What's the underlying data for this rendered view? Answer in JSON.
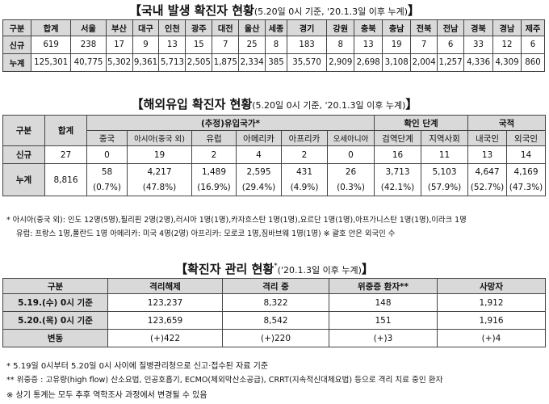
{
  "domestic": {
    "title_main": "국내 발생 확진자 현황",
    "title_sub": "(5.20일 0시 기준, '20.1.3일 이후 누계)",
    "headers": [
      "구분",
      "합계",
      "서울",
      "부산",
      "대구",
      "인천",
      "광주",
      "대전",
      "울산",
      "세종",
      "경기",
      "강원",
      "충북",
      "충남",
      "전북",
      "전남",
      "경북",
      "경남",
      "제주"
    ],
    "rows": [
      {
        "label": "신규",
        "values": [
          "619",
          "238",
          "17",
          "9",
          "13",
          "15",
          "7",
          "25",
          "8",
          "183",
          "8",
          "13",
          "19",
          "7",
          "6",
          "33",
          "12",
          "6"
        ]
      },
      {
        "label": "누계",
        "values": [
          "125,301",
          "40,775",
          "5,302",
          "9,361",
          "5,713",
          "2,505",
          "1,875",
          "2,334",
          "385",
          "35,570",
          "2,909",
          "2,698",
          "3,108",
          "2,004",
          "1,257",
          "4,336",
          "4,309",
          "860"
        ]
      }
    ]
  },
  "overseas": {
    "title_main": "해외유입 확진자 현황",
    "title_sub": "(5.20일 0시 기준, '20.1.3일 이후 누계)",
    "h_gubun": "구분",
    "h_total": "합계",
    "h_region_group": "(추정)유입국가*",
    "h_confirm_group": "확인 단계",
    "h_nation_group": "국적",
    "sub_headers": [
      "중국",
      "아시아(중국 외)",
      "유럽",
      "아메리카",
      "아프리카",
      "오세아니아",
      "검역단계",
      "지역사회",
      "내국인",
      "외국인"
    ],
    "new": {
      "label": "신규",
      "total": "27",
      "values": [
        "0",
        "19",
        "2",
        "4",
        "2",
        "0",
        "16",
        "11",
        "13",
        "14"
      ]
    },
    "cum": {
      "label": "누계",
      "total": "8,816",
      "values": [
        "58",
        "4,217",
        "1,489",
        "2,595",
        "431",
        "26",
        "3,713",
        "5,103",
        "4,647",
        "4,169"
      ],
      "pcts": [
        "(0.7%)",
        "(47.8%)",
        "(16.9%)",
        "(29.4%)",
        "(4.9%)",
        "(0.3%)",
        "(42.1%)",
        "(57.9%)",
        "(52.7%)",
        "(47.3%)"
      ]
    },
    "note_line1": "* 아시아(중국 외): 인도 12명(5명),필리핀 2명(2명),러시아 1명(1명),카자흐스탄 1명(1명),요르단 1명(1명),아프가니스탄 1명(1명),이라크 1명",
    "note_line2": "유럽: 프랑스 1명,폴란드 1명 아메리카: 미국 4명(2명) 아프리카: 모로코 1명,짐바브웨 1명(1명)  ※ 괄호 안은 외국인 수"
  },
  "management": {
    "title_main": "확진자 관리 현황",
    "title_sup": "*",
    "title_sub": "('20.1.3일 이후 누계)",
    "headers": [
      "구분",
      "격리해제",
      "격리 중",
      "위중증 환자**",
      "사망자"
    ],
    "rows": [
      {
        "label": "5.19.(수) 0시 기준",
        "values": [
          "123,237",
          "8,322",
          "148",
          "1,912"
        ]
      },
      {
        "label": "5.20.(목) 0시 기준",
        "values": [
          "123,659",
          "8,542",
          "151",
          "1,916"
        ]
      },
      {
        "label": "변동",
        "values": [
          "(+)422",
          "(+)220",
          "(+)3",
          "(+)4"
        ]
      }
    ],
    "notes": [
      "* 5.19일 0시부터 5.20일 0시 사이에 질병관리청으로 신고·접수된 자료 기준",
      "** 위중증 : 고유량(high flow) 산소요법, 인공호흡기, ECMO(체외막산소공급), CRRT(지속적신대체요법) 등으로 격리 치료 중인 환자",
      "※ 상기 통계는 모두 추후 역학조사 과정에서 변경될 수 있음"
    ]
  }
}
